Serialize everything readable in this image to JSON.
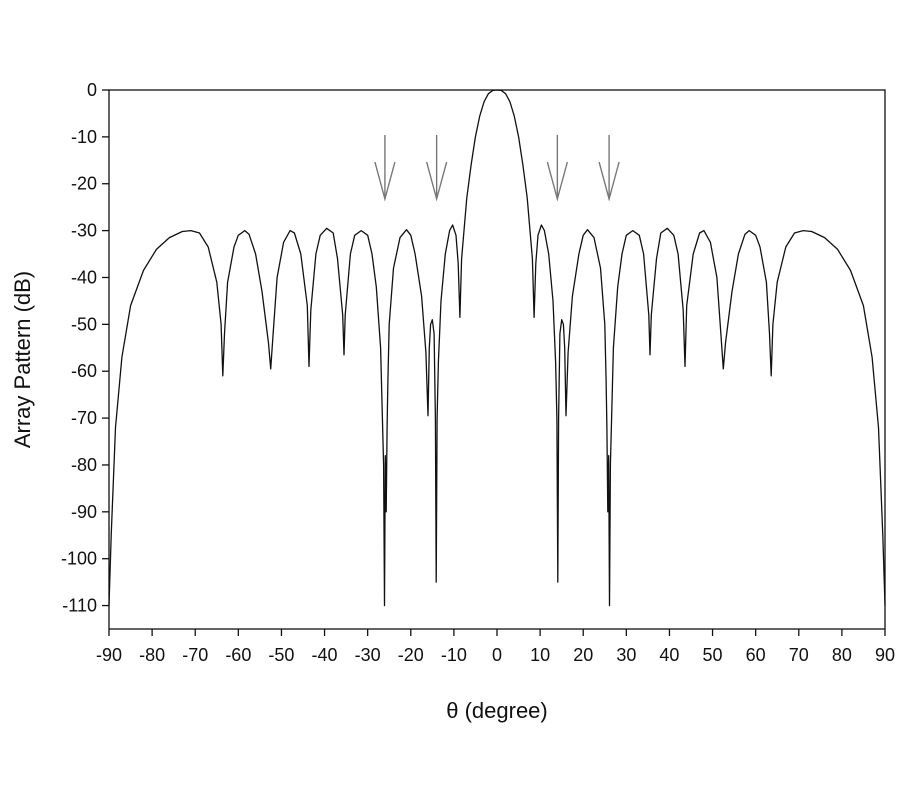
{
  "chart_data": {
    "type": "line",
    "title": "",
    "xlabel": "θ (degree)",
    "ylabel": "Array Pattern (dB)",
    "xlim": [
      -90,
      90
    ],
    "ylim": [
      -115,
      0
    ],
    "xticks": [
      -90,
      -80,
      -70,
      -60,
      -50,
      -40,
      -30,
      -20,
      -10,
      0,
      10,
      20,
      30,
      40,
      50,
      60,
      70,
      80,
      90
    ],
    "yticks": [
      0,
      -10,
      -20,
      -30,
      -40,
      -50,
      -60,
      -70,
      -80,
      -90,
      -100,
      -110
    ],
    "grid": false,
    "line_color": "#111111",
    "arrow_color": "#777777",
    "series": [
      {
        "x": [
          -90,
          -89.5,
          -88.5,
          -87,
          -85,
          -82,
          -79,
          -76,
          -73,
          -71,
          -69,
          -67,
          -65,
          -64,
          -63.6,
          -63.2,
          -62.5,
          -61,
          -60,
          -58.5,
          -57.5,
          -56,
          -54.5,
          -53,
          -52.5,
          -52,
          -51,
          -49.5,
          -48,
          -47,
          -45.5,
          -44,
          -43.6,
          -43.2,
          -42,
          -41,
          -39.5,
          -38,
          -37,
          -35.8,
          -35.5,
          -35.2,
          -34,
          -33,
          -31.5,
          -30,
          -29,
          -28,
          -27,
          -26.3,
          -26.1,
          -25.9,
          -25.7,
          -25.5,
          -25.3,
          -25,
          -24,
          -22.5,
          -21,
          -20,
          -19,
          -17.5,
          -16.5,
          -16,
          -15.7,
          -15.4,
          -15,
          -14.6,
          -14.3,
          -14.1,
          -13.9,
          -13.6,
          -13,
          -12,
          -11,
          -10.3,
          -9.5,
          -9,
          -8.6,
          -8.2,
          -7,
          -6,
          -5,
          -4,
          -3,
          -2,
          -1,
          0,
          1,
          2,
          3,
          4,
          5,
          6,
          7,
          8.2,
          8.6,
          9,
          9.5,
          10.3,
          11,
          12,
          13,
          13.6,
          13.9,
          14.1,
          14.3,
          14.6,
          15,
          15.4,
          15.7,
          16,
          16.5,
          17.5,
          19,
          20,
          21,
          22.5,
          24,
          25,
          25.3,
          25.5,
          25.7,
          25.9,
          26.1,
          26.3,
          27,
          28,
          29,
          30,
          31.5,
          33,
          34,
          35.2,
          35.5,
          35.8,
          37,
          38,
          39.5,
          41,
          42,
          43.2,
          43.6,
          44,
          45.5,
          47,
          48,
          49.5,
          51,
          52,
          52.5,
          53,
          54.5,
          56,
          57.5,
          58.5,
          60,
          61,
          62.5,
          63.2,
          63.6,
          64,
          65,
          67,
          69,
          71,
          73,
          76,
          79,
          82,
          85,
          87,
          88.5,
          89.5,
          90
        ],
        "y": [
          -110,
          -95,
          -72,
          -57,
          -46,
          -38.5,
          -34,
          -31.5,
          -30.2,
          -30,
          -30.5,
          -33.5,
          -41,
          -50,
          -61,
          -52,
          -41,
          -33.5,
          -31,
          -30,
          -30.8,
          -35,
          -43,
          -54,
          -59.5,
          -53,
          -40,
          -32.5,
          -30,
          -30.5,
          -35,
          -46,
          -59,
          -47,
          -35,
          -31,
          -29.5,
          -30.5,
          -36,
          -48,
          -56.5,
          -48,
          -35,
          -31,
          -30,
          -31,
          -35,
          -42,
          -55,
          -80,
          -110,
          -78,
          -90,
          -72,
          -62,
          -50,
          -38,
          -31.5,
          -29.8,
          -31,
          -35,
          -44,
          -56,
          -69.5,
          -55,
          -50,
          -49,
          -52,
          -70,
          -105,
          -70,
          -58,
          -45,
          -35,
          -30,
          -28.8,
          -31,
          -37,
          -48.5,
          -36,
          -23,
          -16,
          -10,
          -5.5,
          -2.5,
          -0.8,
          -0.1,
          0,
          -0.1,
          -0.8,
          -2.5,
          -5.5,
          -10,
          -16,
          -23,
          -36,
          -48.5,
          -37,
          -31,
          -28.8,
          -30,
          -35,
          -45,
          -58,
          -70,
          -105,
          -70,
          -52,
          -49,
          -50,
          -55,
          -69.5,
          -56,
          -44,
          -35,
          -31,
          -29.8,
          -31.5,
          -38,
          -50,
          -62,
          -72,
          -90,
          -78,
          -110,
          -80,
          -55,
          -42,
          -35,
          -31,
          -30,
          -31,
          -35,
          -48,
          -56.5,
          -48,
          -36,
          -30.5,
          -29.5,
          -31,
          -35,
          -47,
          -59,
          -46,
          -35,
          -30.5,
          -30,
          -32.5,
          -40,
          -53,
          -59.5,
          -54,
          -43,
          -35,
          -30.8,
          -30,
          -31,
          -33.5,
          -41,
          -52,
          -61,
          -50,
          -41,
          -33.5,
          -30.5,
          -30,
          -30.2,
          -31.5,
          -34,
          -38.5,
          -46,
          -57,
          -72,
          -95,
          -110
        ]
      }
    ],
    "arrows_x": [
      -26,
      -14,
      14,
      26
    ]
  }
}
